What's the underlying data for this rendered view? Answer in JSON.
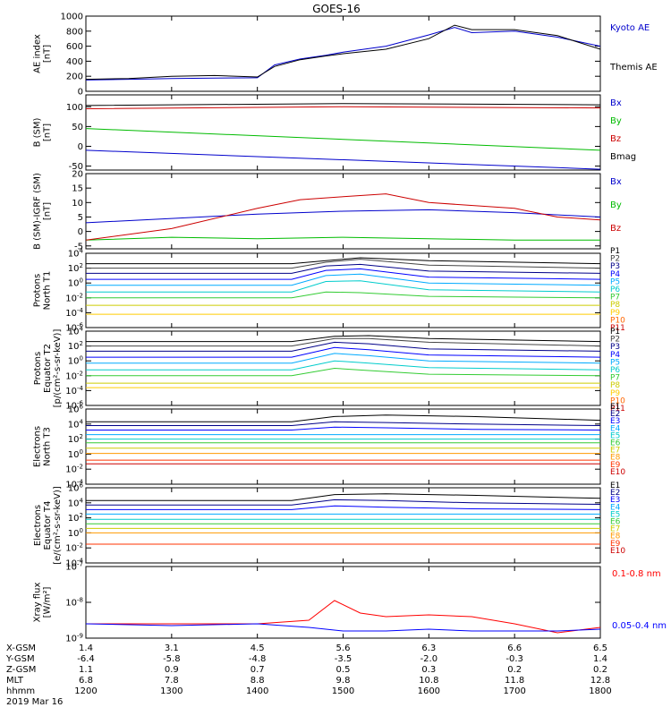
{
  "title": "GOES-16",
  "date_label": "2019 Mar 16",
  "footer": {
    "row_labels": [
      "X-GSM",
      "Y-GSM",
      "Z-GSM",
      "MLT",
      "hhmm"
    ],
    "columns": [
      {
        "x": "1.4",
        "y": "-6.4",
        "z": "1.1",
        "mlt": "6.8",
        "hhmm": "1200"
      },
      {
        "x": "3.1",
        "y": "-5.8",
        "z": "0.9",
        "mlt": "7.8",
        "hhmm": "1300"
      },
      {
        "x": "4.5",
        "y": "-4.8",
        "z": "0.7",
        "mlt": "8.8",
        "hhmm": "1400"
      },
      {
        "x": "5.6",
        "y": "-3.5",
        "z": "0.5",
        "mlt": "9.8",
        "hhmm": "1500"
      },
      {
        "x": "6.3",
        "y": "-2.0",
        "z": "0.3",
        "mlt": "10.8",
        "hhmm": "1600"
      },
      {
        "x": "6.6",
        "y": "-0.3",
        "z": "0.2",
        "mlt": "11.8",
        "hhmm": "1700"
      },
      {
        "x": "6.5",
        "y": "1.4",
        "z": "0.2",
        "mlt": "12.8",
        "hhmm": "1800"
      }
    ]
  },
  "chart_data": [
    {
      "type": "line",
      "ylabel": [
        "AE index",
        "[nT]"
      ],
      "ylim": [
        0,
        1000
      ],
      "yticks": [
        "0",
        "200",
        "400",
        "600",
        "800",
        "1000"
      ],
      "xlim": [
        12,
        18
      ],
      "legend_placement": "right",
      "series": [
        {
          "name": "Kyoto AE",
          "color": "#0000cc",
          "x": [
            12,
            12.5,
            13,
            13.5,
            14,
            14.2,
            14.5,
            14.8,
            15,
            15.5,
            16,
            16.3,
            16.5,
            17,
            17.5,
            18
          ],
          "y": [
            150,
            160,
            170,
            175,
            180,
            350,
            430,
            480,
            520,
            600,
            750,
            850,
            780,
            800,
            720,
            600
          ]
        },
        {
          "name": "Themis AE",
          "color": "#000000",
          "x": [
            12,
            12.5,
            13,
            13.5,
            14,
            14.2,
            14.5,
            14.8,
            15,
            15.5,
            16,
            16.3,
            16.5,
            17,
            17.5,
            18
          ],
          "y": [
            160,
            170,
            200,
            210,
            190,
            330,
            420,
            470,
            500,
            560,
            700,
            880,
            820,
            820,
            740,
            560
          ]
        }
      ]
    },
    {
      "type": "line",
      "ylabel": [
        "B (SM)",
        "[nT]"
      ],
      "ylim": [
        -60,
        130
      ],
      "yticks": [
        "-50",
        "0",
        "50",
        "100"
      ],
      "xlim": [
        12,
        18
      ],
      "legend_placement": "right",
      "series": [
        {
          "name": "Bx",
          "color": "#0000cc",
          "x": [
            12,
            18
          ],
          "y": [
            -10,
            -58
          ]
        },
        {
          "name": "By",
          "color": "#00bb00",
          "x": [
            12,
            18
          ],
          "y": [
            45,
            -10
          ]
        },
        {
          "name": "Bz",
          "color": "#cc0000",
          "x": [
            12,
            15,
            18
          ],
          "y": [
            95,
            100,
            97
          ]
        },
        {
          "name": "Bmag",
          "color": "#000000",
          "x": [
            12,
            15,
            18
          ],
          "y": [
            103,
            108,
            105
          ]
        }
      ]
    },
    {
      "type": "line",
      "ylabel": [
        "B (SM)-IGRF (SM)",
        "[nT]"
      ],
      "ylim": [
        -6,
        20
      ],
      "yticks": [
        "-5",
        "0",
        "5",
        "10",
        "15",
        "20"
      ],
      "xlim": [
        12,
        18
      ],
      "legend_placement": "right",
      "series": [
        {
          "name": "Bx",
          "color": "#0000cc",
          "x": [
            12,
            13,
            14,
            15,
            16,
            17,
            18
          ],
          "y": [
            3,
            4.5,
            6,
            7,
            7.5,
            6.5,
            5
          ]
        },
        {
          "name": "By",
          "color": "#00bb00",
          "x": [
            12,
            13,
            14,
            15,
            16,
            17,
            18
          ],
          "y": [
            -3,
            -2,
            -2.5,
            -2,
            -2.5,
            -3,
            -3
          ]
        },
        {
          "name": "Bz",
          "color": "#cc0000",
          "x": [
            12,
            13,
            14,
            14.5,
            15,
            15.5,
            16,
            17,
            17.5,
            18
          ],
          "y": [
            -3,
            1,
            8,
            11,
            12,
            13,
            10,
            8,
            5,
            4
          ]
        }
      ]
    },
    {
      "type": "line",
      "ylabel": [
        "Protons",
        "North T1"
      ],
      "log_scale": true,
      "ylim": [
        -6,
        4
      ],
      "yticks": [
        "10^-6",
        "10^-4",
        "10^-2",
        "10^0",
        "10^2",
        "10^4"
      ],
      "xlim": [
        12,
        18
      ],
      "legend_placement": "right",
      "series": [
        {
          "name": "P1",
          "color": "#000000",
          "x": [
            12,
            14.4,
            14.8,
            15.2,
            16,
            18
          ],
          "y": [
            2.6,
            2.6,
            3.0,
            3.4,
            3.0,
            2.6
          ]
        },
        {
          "name": "P2",
          "color": "#444444",
          "x": [
            12,
            14.4,
            14.8,
            15.2,
            16,
            18
          ],
          "y": [
            2.0,
            2.0,
            2.8,
            3.2,
            2.4,
            2.0
          ]
        },
        {
          "name": "P3",
          "color": "#000088",
          "x": [
            12,
            14.4,
            14.8,
            15.2,
            16,
            18
          ],
          "y": [
            1.3,
            1.3,
            2.3,
            2.5,
            1.6,
            1.3
          ]
        },
        {
          "name": "P4",
          "color": "#0000ff",
          "x": [
            12,
            14.4,
            14.8,
            15.2,
            16,
            18
          ],
          "y": [
            0.5,
            0.5,
            1.7,
            1.9,
            0.8,
            0.5
          ]
        },
        {
          "name": "P5",
          "color": "#00aaff",
          "x": [
            12,
            14.4,
            14.8,
            15.2,
            16,
            18
          ],
          "y": [
            -0.3,
            -0.3,
            1.0,
            1.2,
            0.0,
            -0.3
          ]
        },
        {
          "name": "P6",
          "color": "#00cccc",
          "x": [
            12,
            14.4,
            14.8,
            15.2,
            16,
            18
          ],
          "y": [
            -1.2,
            -1.2,
            0.2,
            0.3,
            -0.9,
            -1.2
          ]
        },
        {
          "name": "P7",
          "color": "#33cc33",
          "x": [
            12,
            14.4,
            14.8,
            15.2,
            16,
            18
          ],
          "y": [
            -2.0,
            -2.0,
            -1.2,
            -1.3,
            -1.8,
            -2.0
          ]
        },
        {
          "name": "P8",
          "color": "#cccc00",
          "x": [
            12,
            18
          ],
          "y": [
            -3.0,
            -3.0
          ]
        },
        {
          "name": "P9",
          "color": "#ffcc00",
          "x": [
            12,
            18
          ],
          "y": [
            -4.2,
            -4.2
          ]
        },
        {
          "name": "P10",
          "color": "#ff6600",
          "x": [],
          "y": []
        },
        {
          "name": "P11",
          "color": "#cc0000",
          "x": [],
          "y": []
        }
      ]
    },
    {
      "type": "line",
      "ylabel": [
        "Protons",
        "Equator T2",
        "[p/(cm²-s-sr-keV)]"
      ],
      "log_scale": true,
      "ylim": [
        -6,
        4
      ],
      "yticks": [
        "10^-6",
        "10^-4",
        "10^-2",
        "10^0",
        "10^2",
        "10^4"
      ],
      "xlim": [
        12,
        18
      ],
      "legend_placement": "right",
      "series": [
        {
          "name": "P1",
          "color": "#000000",
          "x": [
            12,
            14.4,
            14.9,
            15.3,
            16,
            18
          ],
          "y": [
            2.6,
            2.6,
            3.3,
            3.4,
            3.0,
            2.6
          ]
        },
        {
          "name": "P2",
          "color": "#444444",
          "x": [
            12,
            14.4,
            14.9,
            15.3,
            16,
            18
          ],
          "y": [
            2.0,
            2.0,
            3.0,
            3.0,
            2.5,
            2.0
          ]
        },
        {
          "name": "P3",
          "color": "#000088",
          "x": [
            12,
            14.4,
            14.9,
            15.3,
            16,
            18
          ],
          "y": [
            1.3,
            1.3,
            2.5,
            2.3,
            1.6,
            1.3
          ]
        },
        {
          "name": "P4",
          "color": "#0000ff",
          "x": [
            12,
            14.4,
            14.9,
            15.3,
            16,
            18
          ],
          "y": [
            0.5,
            0.5,
            1.8,
            1.5,
            0.8,
            0.5
          ]
        },
        {
          "name": "P5",
          "color": "#00aaff",
          "x": [
            12,
            14.4,
            14.9,
            15.3,
            16,
            18
          ],
          "y": [
            -0.3,
            -0.3,
            1.0,
            0.7,
            0.0,
            -0.3
          ]
        },
        {
          "name": "P6",
          "color": "#00cccc",
          "x": [
            12,
            14.4,
            14.9,
            15.3,
            16,
            18
          ],
          "y": [
            -1.2,
            -1.2,
            0.0,
            -0.3,
            -0.9,
            -1.2
          ]
        },
        {
          "name": "P7",
          "color": "#33cc33",
          "x": [
            12,
            14.4,
            14.9,
            15.3,
            16,
            18
          ],
          "y": [
            -2.0,
            -2.0,
            -1.0,
            -1.3,
            -1.8,
            -2.0
          ]
        },
        {
          "name": "P8",
          "color": "#cccc00",
          "x": [
            12,
            18
          ],
          "y": [
            -3.0,
            -3.0
          ]
        },
        {
          "name": "P9",
          "color": "#ffcc00",
          "x": [
            12,
            18
          ],
          "y": [
            -3.6,
            -3.6
          ]
        },
        {
          "name": "P10",
          "color": "#ff6600",
          "x": [],
          "y": []
        },
        {
          "name": "P11",
          "color": "#cc0000",
          "x": [],
          "y": []
        }
      ]
    },
    {
      "type": "line",
      "ylabel": [
        "Electrons",
        "North T3"
      ],
      "log_scale": true,
      "ylim": [
        -4,
        6
      ],
      "yticks": [
        "10^-4",
        "10^-2",
        "10^0",
        "10^2",
        "10^4",
        "10^6"
      ],
      "xlim": [
        12,
        18
      ],
      "legend_placement": "right",
      "series": [
        {
          "name": "E1",
          "color": "#000000",
          "x": [
            12,
            14.4,
            14.9,
            15.5,
            16.5,
            18
          ],
          "y": [
            4.3,
            4.3,
            5.0,
            5.2,
            5.0,
            4.5
          ]
        },
        {
          "name": "E2",
          "color": "#000088",
          "x": [
            12,
            14.4,
            14.9,
            15.5,
            16.5,
            18
          ],
          "y": [
            3.8,
            3.8,
            4.3,
            4.2,
            4.0,
            3.8
          ]
        },
        {
          "name": "E3",
          "color": "#0000ff",
          "x": [
            12,
            14.4,
            14.9,
            15.5,
            16.5,
            18
          ],
          "y": [
            3.2,
            3.2,
            3.6,
            3.5,
            3.3,
            3.2
          ]
        },
        {
          "name": "E4",
          "color": "#00aaff",
          "x": [
            12,
            18
          ],
          "y": [
            2.6,
            2.6
          ]
        },
        {
          "name": "E5",
          "color": "#00cccc",
          "x": [
            12,
            18
          ],
          "y": [
            2.0,
            2.0
          ]
        },
        {
          "name": "E6",
          "color": "#33cc33",
          "x": [
            12,
            18
          ],
          "y": [
            1.5,
            1.5
          ]
        },
        {
          "name": "E7",
          "color": "#cccc00",
          "x": [
            12,
            18
          ],
          "y": [
            0.8,
            0.8
          ]
        },
        {
          "name": "E8",
          "color": "#ff9900",
          "x": [
            12,
            18
          ],
          "y": [
            0.1,
            0.1
          ]
        },
        {
          "name": "E9",
          "color": "#ff3300",
          "x": [
            12,
            18
          ],
          "y": [
            -0.8,
            -0.8
          ]
        },
        {
          "name": "E10",
          "color": "#cc0000",
          "x": [
            12,
            18
          ],
          "y": [
            -1.3,
            -1.3
          ]
        }
      ]
    },
    {
      "type": "line",
      "ylabel": [
        "Electrons",
        "Equator T4",
        "[e/(cm²-s-sr-keV)]"
      ],
      "log_scale": true,
      "ylim": [
        -4,
        6
      ],
      "yticks": [
        "10^-4",
        "10^-2",
        "10^0",
        "10^2",
        "10^4",
        "10^6"
      ],
      "xlim": [
        12,
        18
      ],
      "legend_placement": "right",
      "series": [
        {
          "name": "E1",
          "color": "#000000",
          "x": [
            12,
            14.4,
            14.9,
            15.5,
            16.5,
            18
          ],
          "y": [
            4.3,
            4.3,
            5.1,
            5.2,
            5.0,
            4.6
          ]
        },
        {
          "name": "E2",
          "color": "#000088",
          "x": [
            12,
            14.4,
            14.9,
            15.5,
            16.5,
            18
          ],
          "y": [
            3.7,
            3.7,
            4.4,
            4.3,
            4.0,
            3.8
          ]
        },
        {
          "name": "E3",
          "color": "#0000ff",
          "x": [
            12,
            14.4,
            14.9,
            15.5,
            16.5,
            18
          ],
          "y": [
            3.1,
            3.1,
            3.6,
            3.4,
            3.2,
            3.1
          ]
        },
        {
          "name": "E4",
          "color": "#00aaff",
          "x": [
            12,
            18
          ],
          "y": [
            2.5,
            2.5
          ]
        },
        {
          "name": "E5",
          "color": "#00cccc",
          "x": [
            12,
            18
          ],
          "y": [
            1.8,
            1.8
          ]
        },
        {
          "name": "E6",
          "color": "#33cc33",
          "x": [
            12,
            18
          ],
          "y": [
            1.2,
            1.2
          ]
        },
        {
          "name": "E7",
          "color": "#cccc00",
          "x": [
            12,
            18
          ],
          "y": [
            0.6,
            0.6
          ]
        },
        {
          "name": "E8",
          "color": "#ff9900",
          "x": [
            12,
            18
          ],
          "y": [
            0.0,
            0.0
          ]
        },
        {
          "name": "E9",
          "color": "#ff3300",
          "x": [
            12,
            18
          ],
          "y": [
            -1.5,
            -1.5
          ]
        },
        {
          "name": "E10",
          "color": "#cc0000",
          "x": [],
          "y": []
        }
      ]
    },
    {
      "type": "line",
      "ylabel": [
        "Xray flux",
        "[W/m²]"
      ],
      "log_scale": true,
      "ylim": [
        -9,
        -7
      ],
      "yticks": [
        "10^-9",
        "10^-8",
        "10^-7"
      ],
      "xlim": [
        12,
        18
      ],
      "legend_placement": "right",
      "series": [
        {
          "name": "0.1-0.8 nm",
          "color": "#ff0000",
          "x": [
            12,
            13,
            14,
            14.6,
            14.9,
            15.2,
            15.5,
            16,
            16.5,
            17,
            17.5,
            18
          ],
          "y": [
            -8.6,
            -8.6,
            -8.6,
            -8.5,
            -7.95,
            -8.3,
            -8.4,
            -8.35,
            -8.4,
            -8.6,
            -8.85,
            -8.7
          ]
        },
        {
          "name": "0.05-0.4 nm",
          "color": "#0000ff",
          "x": [
            12,
            13,
            14,
            14.6,
            15,
            15.5,
            16,
            16.5,
            17,
            17.5,
            18
          ],
          "y": [
            -8.6,
            -8.65,
            -8.6,
            -8.7,
            -8.8,
            -8.8,
            -8.75,
            -8.8,
            -8.8,
            -8.8,
            -8.75
          ]
        }
      ]
    }
  ]
}
